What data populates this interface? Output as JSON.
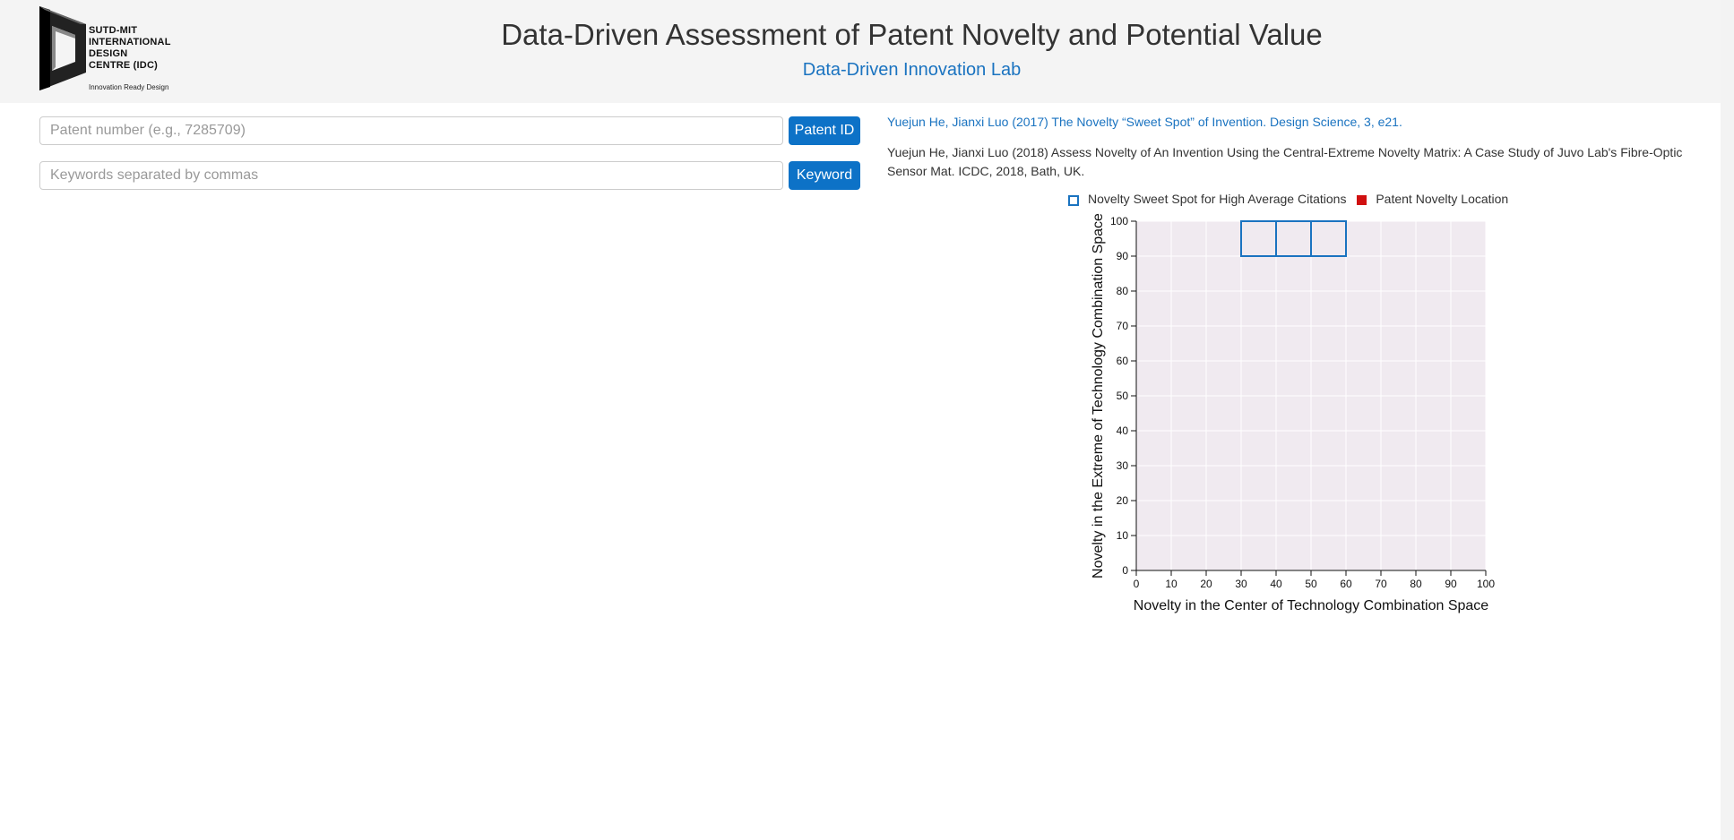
{
  "header": {
    "logo_lines": [
      "SUTD-MIT",
      "INTERNATIONAL",
      "DESIGN",
      "CENTRE (IDC)"
    ],
    "logo_tagline": "Innovation Ready Design",
    "title": "Data-Driven Assessment of Patent Novelty and Potential Value",
    "subtitle": "Data-Driven Innovation Lab"
  },
  "search": {
    "patent_placeholder": "Patent number (e.g., 7285709)",
    "patent_value": "",
    "patent_button": "Patent ID",
    "keyword_placeholder": "Keywords separated by commas",
    "keyword_value": "",
    "keyword_button": "Keyword"
  },
  "references": {
    "ref1": "Yuejun He, Jianxi Luo (2017) The Novelty “Sweet Spot” of Invention. Design Science, 3, e21.",
    "ref2": "Yuejun He, Jianxi Luo (2018) Assess Novelty of An Invention Using the Central-Extreme Novelty Matrix: A Case Study of Juvo Lab's Fibre-Optic Sensor Mat. ICDC, 2018, Bath, UK."
  },
  "colors": {
    "accent": "#1a73c0",
    "button": "#0d72c7",
    "patent_marker": "#d01010",
    "plot_bg": "#f0eaf0"
  },
  "chart_data": {
    "type": "scatter",
    "legend": [
      {
        "label": "Novelty Sweet Spot for High Average Citations",
        "marker": "open-square",
        "color": "#1a73c0"
      },
      {
        "label": "Patent Novelty Location",
        "marker": "filled-square",
        "color": "#d01010"
      }
    ],
    "legend_position": "top",
    "xlabel": "Novelty in the Center of Technology Combination Space",
    "ylabel": "Novelty in the Extreme of Technology Combination Space",
    "xlim": [
      0,
      100
    ],
    "ylim": [
      0,
      100
    ],
    "xticks": [
      0,
      10,
      20,
      30,
      40,
      50,
      60,
      70,
      80,
      90,
      100
    ],
    "yticks": [
      0,
      10,
      20,
      30,
      40,
      50,
      60,
      70,
      80,
      90,
      100
    ],
    "grid": true,
    "sweet_spot_cells": [
      {
        "x0": 30,
        "x1": 40,
        "y0": 90,
        "y1": 100
      },
      {
        "x0": 40,
        "x1": 50,
        "y0": 90,
        "y1": 100
      },
      {
        "x0": 50,
        "x1": 60,
        "y0": 90,
        "y1": 100
      }
    ],
    "patent_points": []
  }
}
